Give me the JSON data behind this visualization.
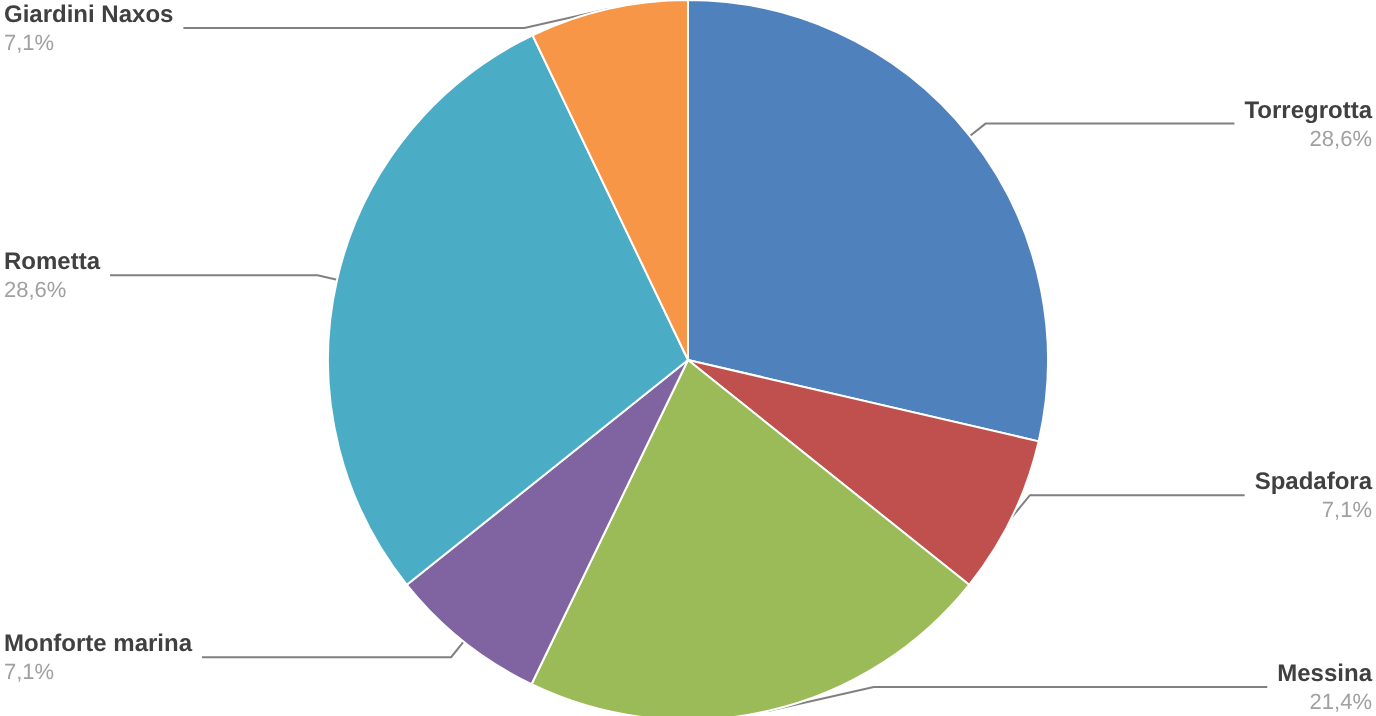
{
  "chart_data": {
    "type": "pie",
    "categories": [
      "Torregrotta",
      "Spadafora",
      "Messina",
      "Monforte marina",
      "Rometta",
      "Giardini Naxos"
    ],
    "values": [
      28.6,
      7.1,
      21.4,
      7.1,
      28.6,
      7.1
    ],
    "colors": [
      "#4f81bd",
      "#c0504d",
      "#9bbb59",
      "#8064a2",
      "#4bacc6",
      "#f79646"
    ],
    "value_labels": [
      "28,6%",
      "7,1%",
      "21,4%",
      "7,1%",
      "28,6%",
      "7,1%"
    ]
  }
}
